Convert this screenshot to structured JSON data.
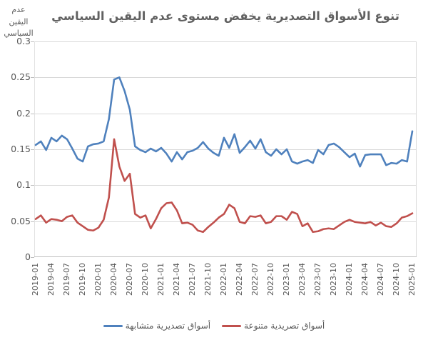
{
  "title": "تنوع الأسواق التصديرية يخفض مستوى عدم اليقين السياسي",
  "y_axis_title_line1": "عدم اليقين",
  "y_axis_title_line2": "السياسي",
  "colors": {
    "series_blue": "#4F81BD",
    "series_red": "#C0504D",
    "gridline": "#D9D9D9",
    "axis_line": "#BFBFBF",
    "tick_mark": "#BFBFBF",
    "text_gray": "#595959",
    "title_gray": "#616161"
  },
  "chart_data": {
    "type": "line",
    "title": "تنوع الأسواق التصديرية يخفض مستوى عدم اليقين السياسي",
    "ylabel": "عدم اليقين السياسي",
    "xlabel": "",
    "ylim": [
      0,
      0.3
    ],
    "y_ticks": [
      0,
      0.05,
      0.1,
      0.15,
      0.2,
      0.25,
      0.3
    ],
    "y_tick_labels": [
      "0",
      "0.05",
      "0.1",
      "0.15",
      "0.2",
      "0.25",
      "0.3"
    ],
    "grid": "horizontal",
    "legend_position": "bottom",
    "x_tick_labels": [
      "2019-01",
      "2019-04",
      "2019-07",
      "2019-10",
      "2020-01",
      "2020-04",
      "2020-07",
      "2020-10",
      "2021-01",
      "2021-04",
      "2021-07",
      "2021-10",
      "2022-01",
      "2022-04",
      "2022-07",
      "2022-10",
      "2023-01",
      "2023-04",
      "2023-07",
      "2023-10",
      "2024-01",
      "2024-04",
      "2024-07",
      "2024-10",
      "2025-01"
    ],
    "x": [
      "2019-01",
      "2019-02",
      "2019-03",
      "2019-04",
      "2019-05",
      "2019-06",
      "2019-07",
      "2019-08",
      "2019-09",
      "2019-10",
      "2019-11",
      "2019-12",
      "2020-01",
      "2020-02",
      "2020-03",
      "2020-04",
      "2020-05",
      "2020-06",
      "2020-07",
      "2020-08",
      "2020-09",
      "2020-10",
      "2020-11",
      "2020-12",
      "2021-01",
      "2021-02",
      "2021-03",
      "2021-04",
      "2021-05",
      "2021-06",
      "2021-07",
      "2021-08",
      "2021-09",
      "2021-10",
      "2021-11",
      "2021-12",
      "2022-01",
      "2022-02",
      "2022-03",
      "2022-04",
      "2022-05",
      "2022-06",
      "2022-07",
      "2022-08",
      "2022-09",
      "2022-10",
      "2022-11",
      "2022-12",
      "2023-01",
      "2023-02",
      "2023-03",
      "2023-04",
      "2023-05",
      "2023-06",
      "2023-07",
      "2023-08",
      "2023-09",
      "2023-10",
      "2023-11",
      "2023-12",
      "2024-01",
      "2024-02",
      "2024-03",
      "2024-04",
      "2024-05",
      "2024-06",
      "2024-07",
      "2024-08",
      "2024-09",
      "2024-10",
      "2024-11",
      "2024-12",
      "2025-01"
    ],
    "series": [
      {
        "name": "أسواق تصديرية متشابهة",
        "color": "#4F81BD",
        "values": [
          0.156,
          0.161,
          0.149,
          0.166,
          0.161,
          0.169,
          0.164,
          0.151,
          0.137,
          0.133,
          0.154,
          0.157,
          0.158,
          0.161,
          0.192,
          0.247,
          0.25,
          0.231,
          0.205,
          0.154,
          0.149,
          0.146,
          0.151,
          0.147,
          0.152,
          0.144,
          0.133,
          0.146,
          0.136,
          0.146,
          0.148,
          0.152,
          0.16,
          0.151,
          0.145,
          0.141,
          0.166,
          0.152,
          0.171,
          0.145,
          0.153,
          0.162,
          0.151,
          0.164,
          0.146,
          0.141,
          0.15,
          0.143,
          0.15,
          0.133,
          0.13,
          0.133,
          0.135,
          0.131,
          0.149,
          0.143,
          0.156,
          0.158,
          0.153,
          0.146,
          0.139,
          0.144,
          0.126,
          0.142,
          0.143,
          0.143,
          0.143,
          0.128,
          0.131,
          0.13,
          0.135,
          0.133,
          0.175
        ]
      },
      {
        "name": "أسواق تصريدية متنوعة",
        "color": "#C0504D",
        "values": [
          0.053,
          0.058,
          0.048,
          0.053,
          0.052,
          0.05,
          0.056,
          0.058,
          0.048,
          0.043,
          0.038,
          0.037,
          0.041,
          0.052,
          0.083,
          0.164,
          0.126,
          0.106,
          0.116,
          0.06,
          0.055,
          0.058,
          0.04,
          0.053,
          0.068,
          0.075,
          0.076,
          0.065,
          0.047,
          0.048,
          0.045,
          0.037,
          0.035,
          0.042,
          0.048,
          0.055,
          0.06,
          0.073,
          0.068,
          0.049,
          0.047,
          0.057,
          0.056,
          0.058,
          0.047,
          0.049,
          0.057,
          0.057,
          0.052,
          0.063,
          0.06,
          0.043,
          0.047,
          0.035,
          0.036,
          0.039,
          0.04,
          0.039,
          0.044,
          0.049,
          0.052,
          0.049,
          0.048,
          0.047,
          0.049,
          0.044,
          0.048,
          0.043,
          0.042,
          0.047,
          0.055,
          0.057,
          0.061
        ]
      }
    ]
  }
}
